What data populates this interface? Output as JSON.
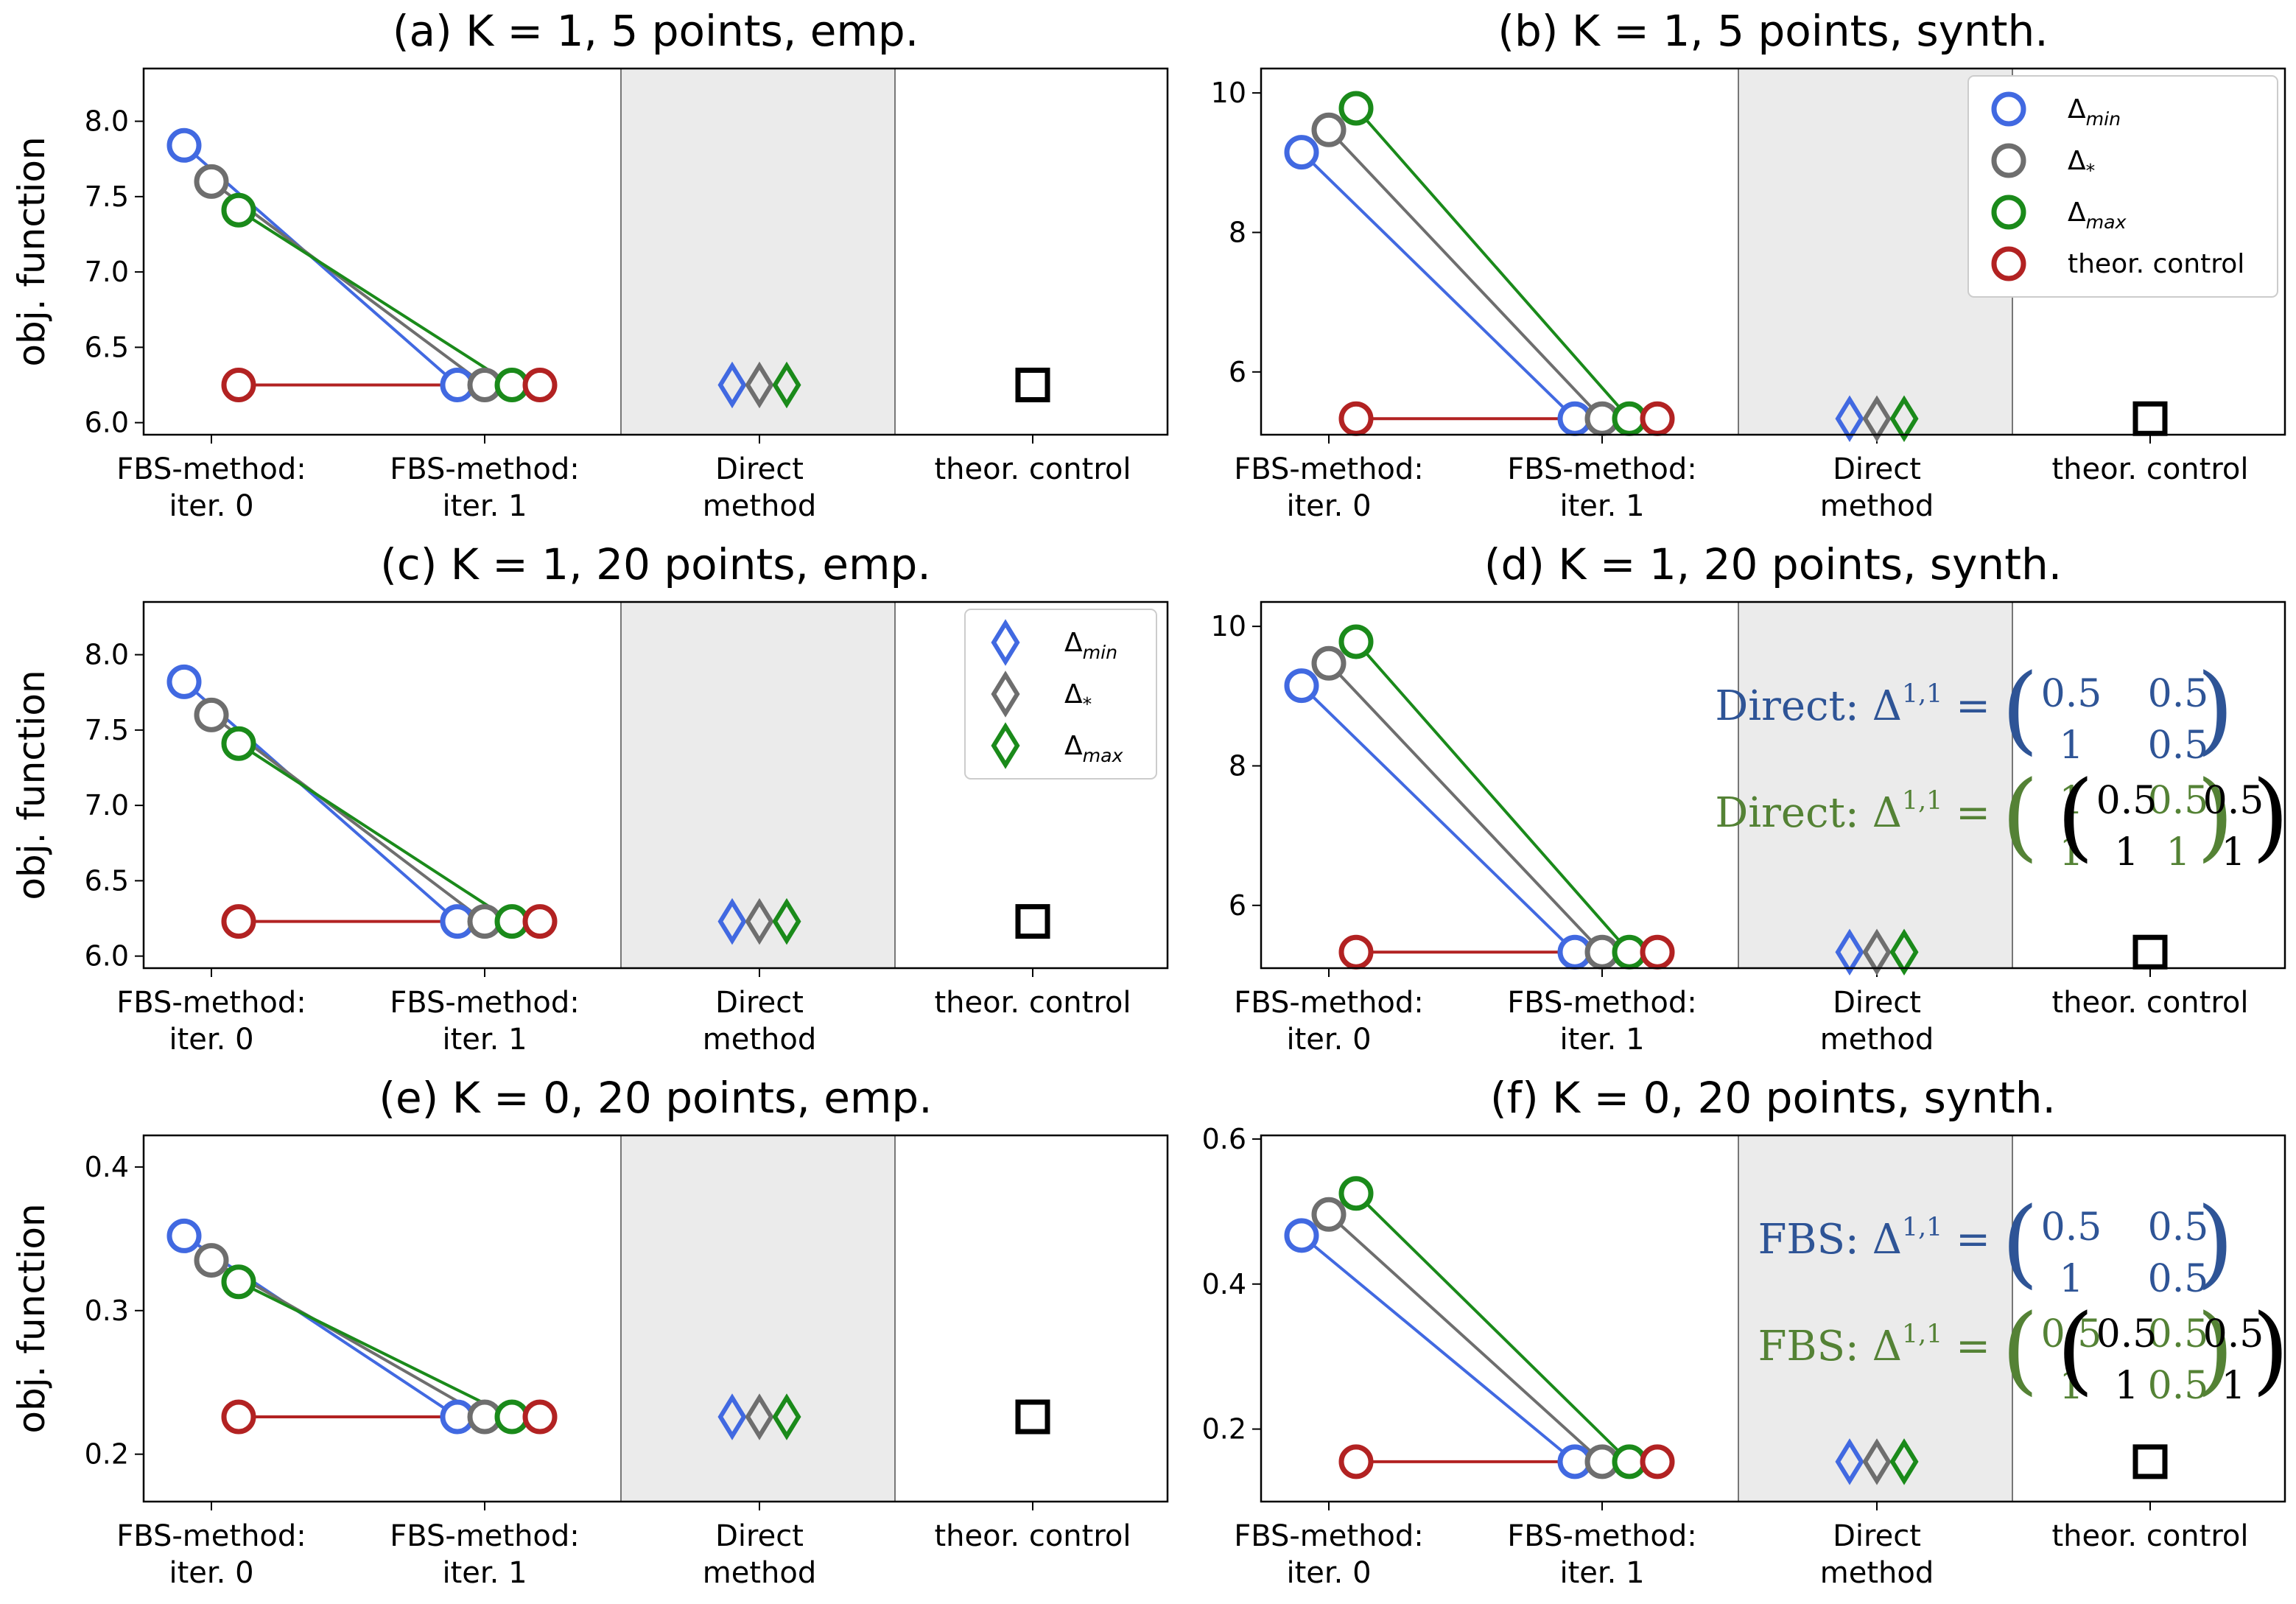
{
  "figure": {
    "colors": {
      "delta_min": "#4169e1",
      "delta_star": "#6e6e6e",
      "delta_max": "#1a8a1a",
      "theor_control": "#b22222",
      "black": "#000000",
      "shade": "#ebebeb",
      "annot_blue": "#2e5496",
      "annot_green": "#548235"
    },
    "ylabel": "obj. function",
    "xtick_labels": [
      [
        "FBS-method:",
        "iter. 0"
      ],
      [
        "FBS-method:",
        "iter. 1"
      ],
      [
        "Direct",
        "method"
      ],
      [
        "theor. control",
        ""
      ]
    ]
  },
  "chart_data": [
    {
      "id": "a",
      "type": "scatter",
      "title": "(a) K = 1, 5 points, emp.",
      "ylabel": "obj. function",
      "ylim": [
        5.92,
        8.35
      ],
      "yticks": [
        "6.0",
        "6.5",
        "7.0",
        "7.5",
        "8.0"
      ],
      "ytick_values": [
        6.0,
        6.5,
        7.0,
        7.5,
        8.0
      ],
      "series": [
        {
          "name": "Δmin",
          "iter0": 7.84,
          "iter1": 6.25,
          "direct": 6.25
        },
        {
          "name": "Δ*",
          "iter0": 7.6,
          "iter1": 6.25,
          "direct": 6.25
        },
        {
          "name": "Δmax",
          "iter0": 7.41,
          "iter1": 6.25,
          "direct": 6.25
        },
        {
          "name": "theor. control",
          "iter0": 6.25,
          "iter1": 6.25
        }
      ],
      "theor_value": 6.25,
      "legend": null,
      "annotations": []
    },
    {
      "id": "b",
      "type": "scatter",
      "title": "(b) K = 1, 5 points, synth.",
      "ylabel": "",
      "ylim": [
        5.1,
        10.35
      ],
      "yticks": [
        "6",
        "8",
        "10"
      ],
      "ytick_values": [
        6,
        8,
        10
      ],
      "series": [
        {
          "name": "Δmin",
          "iter0": 9.15,
          "iter1": 5.33,
          "direct": 5.33
        },
        {
          "name": "Δ*",
          "iter0": 9.47,
          "iter1": 5.33,
          "direct": 5.33
        },
        {
          "name": "Δmax",
          "iter0": 9.78,
          "iter1": 5.33,
          "direct": 5.33
        },
        {
          "name": "theor. control",
          "iter0": 5.33,
          "iter1": 5.33
        }
      ],
      "theor_value": 5.33,
      "legend": {
        "type": "circle",
        "placement": "top-right",
        "entries": [
          {
            "label": "Δ",
            "sub": "min"
          },
          {
            "label": "Δ",
            "sub": "*"
          },
          {
            "label": "Δ",
            "sub": "max"
          },
          {
            "label": "theor. control",
            "sub": ""
          }
        ]
      },
      "annotations": []
    },
    {
      "id": "c",
      "type": "scatter",
      "title": "(c) K = 1, 20 points, emp.",
      "ylabel": "obj. function",
      "ylim": [
        5.92,
        8.35
      ],
      "yticks": [
        "6.0",
        "6.5",
        "7.0",
        "7.5",
        "8.0"
      ],
      "ytick_values": [
        6.0,
        6.5,
        7.0,
        7.5,
        8.0
      ],
      "series": [
        {
          "name": "Δmin",
          "iter0": 7.82,
          "iter1": 6.23,
          "direct": 6.23
        },
        {
          "name": "Δ*",
          "iter0": 7.6,
          "iter1": 6.23,
          "direct": 6.23
        },
        {
          "name": "Δmax",
          "iter0": 7.41,
          "iter1": 6.23,
          "direct": 6.23
        },
        {
          "name": "theor. control",
          "iter0": 6.23,
          "iter1": 6.23
        }
      ],
      "theor_value": 6.23,
      "legend": {
        "type": "diamond",
        "placement": "top-right",
        "entries": [
          {
            "label": "Δ",
            "sub": "min"
          },
          {
            "label": "Δ",
            "sub": "*"
          },
          {
            "label": "Δ",
            "sub": "max"
          }
        ]
      },
      "annotations": []
    },
    {
      "id": "d",
      "type": "scatter",
      "title": "(d) K = 1, 20 points, synth.",
      "ylabel": "",
      "ylim": [
        5.1,
        10.35
      ],
      "yticks": [
        "6",
        "8",
        "10"
      ],
      "ytick_values": [
        6,
        8,
        10
      ],
      "series": [
        {
          "name": "Δmin",
          "iter0": 9.15,
          "iter1": 5.33,
          "direct": 5.33
        },
        {
          "name": "Δ*",
          "iter0": 9.47,
          "iter1": 5.33,
          "direct": 5.33
        },
        {
          "name": "Δmax",
          "iter0": 9.78,
          "iter1": 5.33,
          "direct": 5.33
        },
        {
          "name": "theor. control",
          "iter0": 5.33,
          "iter1": 5.33
        }
      ],
      "theor_value": 5.33,
      "legend": null,
      "annotations": [
        {
          "prefix": "Direct: Δ",
          "sup": "1,1",
          "matrix": [
            [
              "0.5",
              "0.5"
            ],
            [
              "1",
              "0.5"
            ]
          ],
          "color": "annot_blue",
          "anchor": "iter1-upper"
        },
        {
          "prefix": "Direct: Δ",
          "sup": "1,1",
          "matrix": [
            [
              "1",
              "0.5"
            ],
            [
              "1",
              "1"
            ]
          ],
          "color": "annot_green",
          "anchor": "iter1-lower"
        },
        {
          "prefix": "",
          "sup": "",
          "matrix": [
            [
              "0.5",
              "0.5"
            ],
            [
              "1",
              "1"
            ]
          ],
          "color": "black",
          "anchor": "theor"
        }
      ]
    },
    {
      "id": "e",
      "type": "scatter",
      "title": "(e) K = 0, 20 points, emp.",
      "ylabel": "obj. function",
      "ylim": [
        0.167,
        0.422
      ],
      "yticks": [
        "0.2",
        "0.3",
        "0.4"
      ],
      "ytick_values": [
        0.2,
        0.3,
        0.4
      ],
      "series": [
        {
          "name": "Δmin",
          "iter0": 0.352,
          "iter1": 0.226,
          "direct": 0.226
        },
        {
          "name": "Δ*",
          "iter0": 0.335,
          "iter1": 0.226,
          "direct": 0.226
        },
        {
          "name": "Δmax",
          "iter0": 0.32,
          "iter1": 0.226,
          "direct": 0.226
        },
        {
          "name": "theor. control",
          "iter0": 0.226,
          "iter1": 0.226
        }
      ],
      "theor_value": 0.226,
      "legend": null,
      "annotations": []
    },
    {
      "id": "f",
      "type": "scatter",
      "title": "(f) K = 0, 20 points, synth.",
      "ylabel": "",
      "ylim": [
        0.1,
        0.605
      ],
      "yticks": [
        "0.2",
        "0.4",
        "0.6"
      ],
      "ytick_values": [
        0.2,
        0.4,
        0.6
      ],
      "series": [
        {
          "name": "Δmin",
          "iter0": 0.467,
          "iter1": 0.155,
          "direct": 0.155
        },
        {
          "name": "Δ*",
          "iter0": 0.496,
          "iter1": 0.155,
          "direct": 0.155
        },
        {
          "name": "Δmax",
          "iter0": 0.525,
          "iter1": 0.155,
          "direct": 0.155
        },
        {
          "name": "theor. control",
          "iter0": 0.155,
          "iter1": 0.155
        }
      ],
      "theor_value": 0.155,
      "legend": null,
      "annotations": [
        {
          "prefix": "FBS: Δ",
          "sup": "1,1",
          "matrix": [
            [
              "0.5",
              "0.5"
            ],
            [
              "1",
              "0.5"
            ]
          ],
          "color": "annot_blue",
          "anchor": "iter1-upper"
        },
        {
          "prefix": "FBS: Δ",
          "sup": "1,1",
          "matrix": [
            [
              "0.5",
              "0.5"
            ],
            [
              "1",
              "0.5"
            ]
          ],
          "color": "annot_green",
          "anchor": "iter1-lower"
        },
        {
          "prefix": "",
          "sup": "",
          "matrix": [
            [
              "0.5",
              "0.5"
            ],
            [
              "1",
              "1"
            ]
          ],
          "color": "black",
          "anchor": "theor"
        }
      ]
    }
  ]
}
